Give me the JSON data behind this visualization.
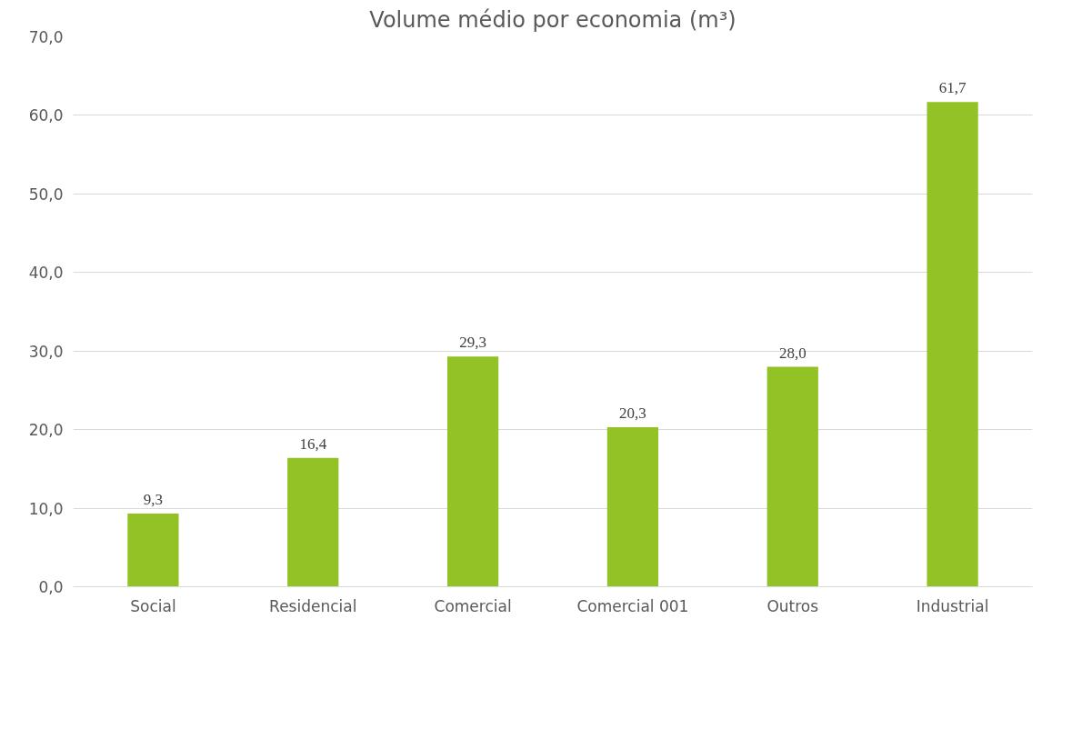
{
  "chart_data": {
    "type": "bar",
    "title": "Volume médio por economia (m³)",
    "categories": [
      "Social",
      "Residencial",
      "Comercial",
      "Comercial 001",
      "Outros",
      "Industrial"
    ],
    "values": [
      9.3,
      16.4,
      29.3,
      20.3,
      28.0,
      61.7
    ],
    "value_labels": [
      "9,3",
      "16,4",
      "29,3",
      "20,3",
      "28,0",
      "61,7"
    ],
    "color": "#92c225",
    "ylim": [
      0,
      70
    ],
    "yticks": [
      {
        "value": 0,
        "label": "0,0"
      },
      {
        "value": 10,
        "label": "10,0"
      },
      {
        "value": 20,
        "label": "20,0"
      },
      {
        "value": 30,
        "label": "30,0"
      },
      {
        "value": 40,
        "label": "40,0"
      },
      {
        "value": 50,
        "label": "50,0"
      },
      {
        "value": 60,
        "label": "60,0"
      },
      {
        "value": 70,
        "label": "70,0"
      }
    ],
    "grid": "y"
  }
}
